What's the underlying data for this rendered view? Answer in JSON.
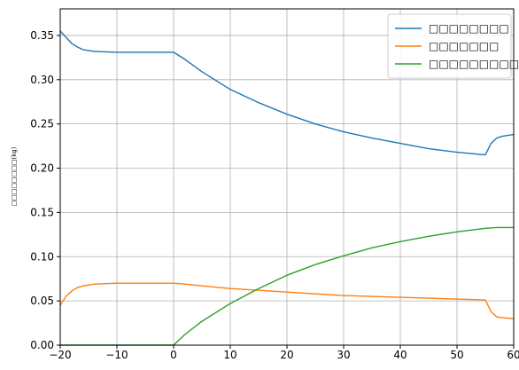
{
  "chart_data": {
    "type": "line",
    "title": "",
    "xlabel": "",
    "ylabel": "□□□□□□□□(kg)",
    "xlim": [
      -20,
      60
    ],
    "ylim": [
      0,
      0.38
    ],
    "grid": true,
    "legend_position": "top-right",
    "x_ticks": [
      -20,
      -10,
      0,
      10,
      20,
      30,
      40,
      50,
      60
    ],
    "x_tick_labels": [
      "−20",
      "−10",
      "0",
      "10",
      "20",
      "30",
      "40",
      "50",
      "60"
    ],
    "y_ticks": [
      0,
      0.05,
      0.1,
      0.15,
      0.2,
      0.25,
      0.3,
      0.35
    ],
    "y_tick_labels": [
      "0.00",
      "0.05",
      "0.10",
      "0.15",
      "0.20",
      "0.25",
      "0.30",
      "0.35"
    ],
    "series": [
      {
        "name": "□□□□□□□□",
        "color": "#1f77b4",
        "x": [
          -20,
          -19,
          -18,
          -17,
          -16,
          -15,
          -14,
          -12,
          -10,
          -8,
          -5,
          -2,
          0,
          2,
          5,
          10,
          15,
          20,
          25,
          30,
          35,
          40,
          45,
          50,
          55,
          56,
          57,
          58,
          60
        ],
        "y": [
          0.355,
          0.348,
          0.341,
          0.337,
          0.334,
          0.333,
          0.332,
          0.3315,
          0.331,
          0.331,
          0.331,
          0.331,
          0.331,
          0.323,
          0.309,
          0.289,
          0.274,
          0.261,
          0.25,
          0.241,
          0.234,
          0.228,
          0.222,
          0.218,
          0.215,
          0.228,
          0.234,
          0.236,
          0.238
        ]
      },
      {
        "name": "□□□□□□□",
        "color": "#ff7f0e",
        "x": [
          -20,
          -19,
          -18,
          -17,
          -16,
          -15,
          -14,
          -12,
          -10,
          -8,
          -5,
          -2,
          0,
          2,
          5,
          10,
          15,
          20,
          25,
          30,
          35,
          40,
          45,
          50,
          55,
          56,
          57,
          58,
          60
        ],
        "y": [
          0.045,
          0.055,
          0.061,
          0.065,
          0.067,
          0.068,
          0.069,
          0.0695,
          0.07,
          0.07,
          0.07,
          0.07,
          0.07,
          0.069,
          0.067,
          0.064,
          0.062,
          0.06,
          0.058,
          0.056,
          0.055,
          0.054,
          0.053,
          0.052,
          0.051,
          0.038,
          0.032,
          0.031,
          0.03
        ]
      },
      {
        "name": "□□□□□□□□□□",
        "color": "#2ca02c",
        "x": [
          -20,
          -10,
          0,
          2,
          5,
          10,
          15,
          20,
          25,
          30,
          35,
          40,
          45,
          50,
          55,
          57,
          60
        ],
        "y": [
          0,
          0,
          0,
          0.012,
          0.027,
          0.047,
          0.064,
          0.079,
          0.091,
          0.101,
          0.11,
          0.117,
          0.123,
          0.128,
          0.132,
          0.133,
          0.133
        ]
      }
    ]
  }
}
